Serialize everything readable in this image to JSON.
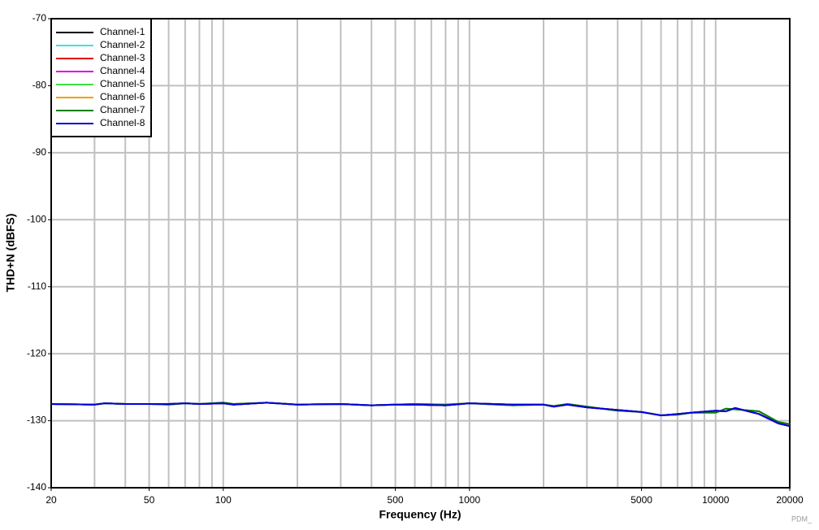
{
  "chart_data": {
    "type": "line",
    "xlabel": "Frequency (Hz)",
    "ylabel": "THD+N (dBFS)",
    "watermark": "PDM_",
    "xscale": "log",
    "grid": true,
    "legend": "upper left",
    "xlim": [
      20,
      20000
    ],
    "ylim": [
      -140,
      -70
    ],
    "xticks": [
      20,
      50,
      100,
      500,
      1000,
      5000,
      10000,
      20000
    ],
    "xgrid": [
      20,
      30,
      40,
      50,
      60,
      70,
      80,
      90,
      100,
      200,
      300,
      400,
      500,
      600,
      700,
      800,
      900,
      1000,
      2000,
      3000,
      4000,
      5000,
      6000,
      7000,
      8000,
      9000,
      10000,
      20000
    ],
    "yticks": [
      -70,
      -80,
      -90,
      -100,
      -110,
      -120,
      -130,
      -140
    ],
    "x": [
      20,
      30,
      33,
      40,
      50,
      60,
      70,
      80,
      100,
      110,
      150,
      200,
      300,
      400,
      500,
      600,
      800,
      1000,
      1500,
      2000,
      2200,
      2500,
      3000,
      4000,
      5000,
      6000,
      7000,
      8000,
      10000,
      11000,
      12000,
      15000,
      18000,
      20000
    ],
    "series": [
      {
        "name": "Channel-1",
        "color": "#000000",
        "values": [
          -127.5,
          -127.6,
          -127.4,
          -127.5,
          -127.5,
          -127.5,
          -127.4,
          -127.5,
          -127.4,
          -127.6,
          -127.3,
          -127.6,
          -127.5,
          -127.7,
          -127.6,
          -127.6,
          -127.7,
          -127.4,
          -127.6,
          -127.6,
          -127.9,
          -127.6,
          -128.0,
          -128.4,
          -128.7,
          -129.2,
          -129.0,
          -128.8,
          -128.5,
          -128.6,
          -128.1,
          -129.0,
          -130.4,
          -130.8
        ]
      },
      {
        "name": "Channel-2",
        "color": "#40e0e0",
        "values": [
          -127.5,
          -127.6,
          -127.4,
          -127.5,
          -127.5,
          -127.5,
          -127.4,
          -127.5,
          -127.4,
          -127.6,
          -127.3,
          -127.6,
          -127.5,
          -127.7,
          -127.6,
          -127.6,
          -127.7,
          -127.4,
          -127.6,
          -127.6,
          -127.9,
          -127.6,
          -128.0,
          -128.4,
          -128.7,
          -129.2,
          -129.0,
          -128.8,
          -128.5,
          -128.6,
          -128.1,
          -129.0,
          -130.4,
          -130.8
        ]
      },
      {
        "name": "Channel-3",
        "color": "#e00000",
        "values": [
          -127.5,
          -127.6,
          -127.4,
          -127.5,
          -127.5,
          -127.5,
          -127.4,
          -127.5,
          -127.4,
          -127.6,
          -127.3,
          -127.6,
          -127.5,
          -127.7,
          -127.6,
          -127.6,
          -127.7,
          -127.4,
          -127.6,
          -127.6,
          -127.9,
          -127.6,
          -128.0,
          -128.4,
          -128.7,
          -129.2,
          -129.0,
          -128.8,
          -128.5,
          -128.6,
          -128.1,
          -129.0,
          -130.4,
          -130.8
        ]
      },
      {
        "name": "Channel-4",
        "color": "#e000e0",
        "values": [
          -127.5,
          -127.6,
          -127.4,
          -127.5,
          -127.5,
          -127.5,
          -127.4,
          -127.5,
          -127.4,
          -127.6,
          -127.3,
          -127.6,
          -127.5,
          -127.7,
          -127.6,
          -127.6,
          -127.7,
          -127.4,
          -127.6,
          -127.6,
          -127.9,
          -127.6,
          -128.0,
          -128.4,
          -128.7,
          -129.2,
          -129.0,
          -128.8,
          -128.5,
          -128.6,
          -128.1,
          -129.0,
          -130.4,
          -130.8
        ]
      },
      {
        "name": "Channel-5",
        "color": "#40e040",
        "values": [
          -127.5,
          -127.6,
          -127.4,
          -127.5,
          -127.5,
          -127.6,
          -127.4,
          -127.5,
          -127.3,
          -127.5,
          -127.3,
          -127.6,
          -127.5,
          -127.7,
          -127.6,
          -127.5,
          -127.6,
          -127.4,
          -127.7,
          -127.6,
          -127.8,
          -127.5,
          -127.9,
          -128.5,
          -128.7,
          -129.2,
          -129.1,
          -128.8,
          -128.8,
          -128.2,
          -128.3,
          -128.6,
          -130.2,
          -130.5
        ]
      },
      {
        "name": "Channel-6",
        "color": "#f0a000",
        "values": [
          -127.5,
          -127.6,
          -127.4,
          -127.5,
          -127.5,
          -127.6,
          -127.4,
          -127.5,
          -127.3,
          -127.5,
          -127.3,
          -127.6,
          -127.5,
          -127.7,
          -127.6,
          -127.5,
          -127.6,
          -127.4,
          -127.7,
          -127.6,
          -127.8,
          -127.5,
          -127.9,
          -128.5,
          -128.7,
          -129.2,
          -129.1,
          -128.8,
          -128.8,
          -128.2,
          -128.3,
          -128.6,
          -130.2,
          -130.5
        ]
      },
      {
        "name": "Channel-7",
        "color": "#008000",
        "values": [
          -127.5,
          -127.6,
          -127.4,
          -127.5,
          -127.5,
          -127.6,
          -127.4,
          -127.5,
          -127.3,
          -127.5,
          -127.3,
          -127.6,
          -127.5,
          -127.7,
          -127.6,
          -127.5,
          -127.6,
          -127.4,
          -127.7,
          -127.6,
          -127.8,
          -127.5,
          -127.9,
          -128.5,
          -128.7,
          -129.2,
          -129.1,
          -128.8,
          -128.8,
          -128.2,
          -128.3,
          -128.6,
          -130.2,
          -130.5
        ]
      },
      {
        "name": "Channel-8",
        "color": "#0000e0",
        "values": [
          -127.5,
          -127.6,
          -127.4,
          -127.5,
          -127.5,
          -127.5,
          -127.4,
          -127.5,
          -127.4,
          -127.6,
          -127.3,
          -127.6,
          -127.5,
          -127.7,
          -127.6,
          -127.6,
          -127.7,
          -127.4,
          -127.6,
          -127.6,
          -127.9,
          -127.6,
          -128.0,
          -128.4,
          -128.7,
          -129.2,
          -129.0,
          -128.8,
          -128.5,
          -128.6,
          -128.1,
          -129.0,
          -130.4,
          -130.8
        ]
      }
    ]
  }
}
